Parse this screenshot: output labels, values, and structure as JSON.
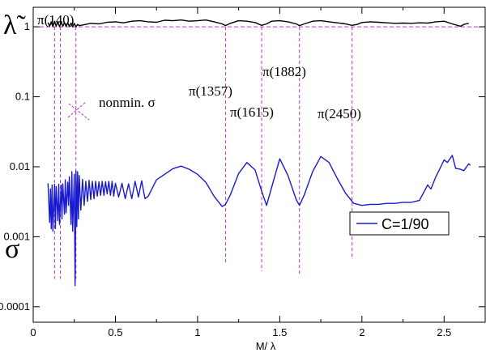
{
  "chart_data": {
    "type": "line",
    "title": "",
    "xlabel": "M/ λ",
    "ylabel_top_symbol": "λ̃",
    "ylabel_bottom_symbol": "σ",
    "xlim": [
      0,
      2.75
    ],
    "ylim": [
      6e-05,
      1.9
    ],
    "y_scale": "log",
    "x_ticks": [
      0,
      0.5,
      1,
      1.5,
      2,
      2.5
    ],
    "x_tick_labels": [
      "0",
      "0.5",
      "1",
      "1.5",
      "2",
      "2.5"
    ],
    "y_ticks": [
      0.0001,
      0.001,
      0.01,
      0.1,
      1
    ],
    "y_tick_labels": [
      "0.0001",
      "0.001",
      "0.01",
      "0.1",
      "1"
    ],
    "legend": {
      "placement": "right",
      "entries": [
        {
          "label": "C=1/90",
          "color": "#1a1ad0"
        }
      ]
    },
    "reference_line": {
      "y": 1.0,
      "color": "#c030c0",
      "style": "dashed"
    },
    "series": [
      {
        "name": "lambda_tilde",
        "color": "#000000",
        "x": [
          0.09,
          0.1,
          0.11,
          0.12,
          0.13,
          0.14,
          0.15,
          0.16,
          0.17,
          0.18,
          0.19,
          0.2,
          0.21,
          0.22,
          0.23,
          0.24,
          0.25,
          0.26,
          0.27,
          0.28,
          0.3,
          0.35,
          0.4,
          0.45,
          0.5,
          0.55,
          0.6,
          0.65,
          0.7,
          0.75,
          0.8,
          0.85,
          0.9,
          0.95,
          1.0,
          1.05,
          1.1,
          1.15,
          1.17,
          1.2,
          1.25,
          1.3,
          1.35,
          1.39,
          1.42,
          1.45,
          1.5,
          1.55,
          1.6,
          1.62,
          1.65,
          1.7,
          1.75,
          1.8,
          1.85,
          1.9,
          1.94,
          1.97,
          2.0,
          2.05,
          2.1,
          2.15,
          2.2,
          2.25,
          2.3,
          2.35,
          2.4,
          2.45,
          2.5,
          2.55,
          2.6,
          2.62,
          2.65
        ],
        "y": [
          1.15,
          1.02,
          1.18,
          1.0,
          1.2,
          1.02,
          1.18,
          1.0,
          1.17,
          1.02,
          1.15,
          1.01,
          1.14,
          1.02,
          1.13,
          1.0,
          1.12,
          1.0,
          1.08,
          1.04,
          1.06,
          1.12,
          1.1,
          1.16,
          1.18,
          1.14,
          1.2,
          1.22,
          1.18,
          1.16,
          1.24,
          1.22,
          1.25,
          1.2,
          1.22,
          1.25,
          1.18,
          1.1,
          1.04,
          1.12,
          1.22,
          1.2,
          1.15,
          1.05,
          1.1,
          1.2,
          1.22,
          1.18,
          1.1,
          1.04,
          1.1,
          1.2,
          1.22,
          1.18,
          1.14,
          1.1,
          1.05,
          1.08,
          1.15,
          1.18,
          1.16,
          1.14,
          1.12,
          1.13,
          1.12,
          1.14,
          1.13,
          1.18,
          1.2,
          1.1,
          1.02,
          1.08,
          1.12
        ]
      },
      {
        "name": "sigma",
        "color": "#1a1ad0",
        "x": [
          0.09,
          0.1,
          0.105,
          0.11,
          0.115,
          0.12,
          0.13,
          0.135,
          0.14,
          0.15,
          0.155,
          0.16,
          0.17,
          0.175,
          0.18,
          0.19,
          0.195,
          0.2,
          0.21,
          0.215,
          0.22,
          0.23,
          0.235,
          0.24,
          0.25,
          0.255,
          0.26,
          0.265,
          0.27,
          0.275,
          0.28,
          0.29,
          0.3,
          0.31,
          0.32,
          0.33,
          0.34,
          0.35,
          0.36,
          0.37,
          0.38,
          0.39,
          0.4,
          0.41,
          0.42,
          0.43,
          0.44,
          0.45,
          0.46,
          0.47,
          0.48,
          0.49,
          0.5,
          0.52,
          0.54,
          0.56,
          0.58,
          0.6,
          0.62,
          0.64,
          0.66,
          0.68,
          0.7,
          0.75,
          0.8,
          0.85,
          0.9,
          0.95,
          1.0,
          1.05,
          1.1,
          1.15,
          1.17,
          1.2,
          1.25,
          1.3,
          1.35,
          1.39,
          1.42,
          1.45,
          1.5,
          1.55,
          1.6,
          1.62,
          1.65,
          1.7,
          1.75,
          1.8,
          1.85,
          1.9,
          1.95,
          2.0,
          2.05,
          2.1,
          2.15,
          2.2,
          2.25,
          2.3,
          2.35,
          2.4,
          2.42,
          2.45,
          2.48,
          2.5,
          2.52,
          2.55,
          2.57,
          2.6,
          2.62,
          2.65,
          2.66
        ],
        "y": [
          0.0058,
          0.0016,
          0.0048,
          0.0013,
          0.0055,
          0.0012,
          0.0056,
          0.0013,
          0.0052,
          0.0017,
          0.0056,
          0.0015,
          0.0055,
          0.0018,
          0.0057,
          0.0021,
          0.0065,
          0.0022,
          0.006,
          0.0028,
          0.0072,
          0.0015,
          0.0085,
          0.0012,
          0.0078,
          0.0002,
          0.0088,
          0.0014,
          0.0085,
          0.0018,
          0.0075,
          0.0024,
          0.0066,
          0.0028,
          0.0062,
          0.0032,
          0.0064,
          0.0034,
          0.0062,
          0.0035,
          0.0062,
          0.0038,
          0.0061,
          0.0039,
          0.0062,
          0.0039,
          0.0061,
          0.0041,
          0.0062,
          0.0039,
          0.0062,
          0.0038,
          0.0058,
          0.0037,
          0.0058,
          0.0035,
          0.0057,
          0.0035,
          0.0062,
          0.0037,
          0.0063,
          0.0035,
          0.0038,
          0.0065,
          0.0078,
          0.0094,
          0.0102,
          0.0092,
          0.0078,
          0.006,
          0.0038,
          0.0027,
          0.0029,
          0.004,
          0.008,
          0.0115,
          0.009,
          0.0045,
          0.0028,
          0.005,
          0.013,
          0.0075,
          0.0034,
          0.0028,
          0.004,
          0.0085,
          0.014,
          0.0115,
          0.0068,
          0.0042,
          0.003,
          0.0028,
          0.0029,
          0.0029,
          0.003,
          0.003,
          0.0031,
          0.0031,
          0.0033,
          0.0055,
          0.0048,
          0.0072,
          0.01,
          0.0125,
          0.0115,
          0.0145,
          0.0095,
          0.0092,
          0.0088,
          0.011,
          0.0105
        ]
      }
    ],
    "markers": [
      {
        "x": 0.165,
        "y_top": 1.0,
        "y_bottom": 0.00025,
        "label": "π(140)"
      },
      {
        "x": 0.13,
        "y_top": 1.0,
        "y_bottom": 0.00025,
        "label": ""
      },
      {
        "x": 0.26,
        "y_top": 1.0,
        "y_bottom": 0.00025,
        "label": ""
      },
      {
        "x": 1.17,
        "y_top": 1.0,
        "y_bottom": 0.00042,
        "label": "π(1357)"
      },
      {
        "x": 1.39,
        "y_top": 1.0,
        "y_bottom": 0.00032,
        "label": "π(1882)"
      },
      {
        "x": 1.62,
        "y_top": 1.0,
        "y_bottom": 0.00028,
        "label": "π(1615)"
      },
      {
        "x": 1.94,
        "y_top": 1.0,
        "y_bottom": 0.0005,
        "label": "π(2450)"
      }
    ],
    "annotations": [
      {
        "text": "nonmin. σ"
      }
    ]
  }
}
